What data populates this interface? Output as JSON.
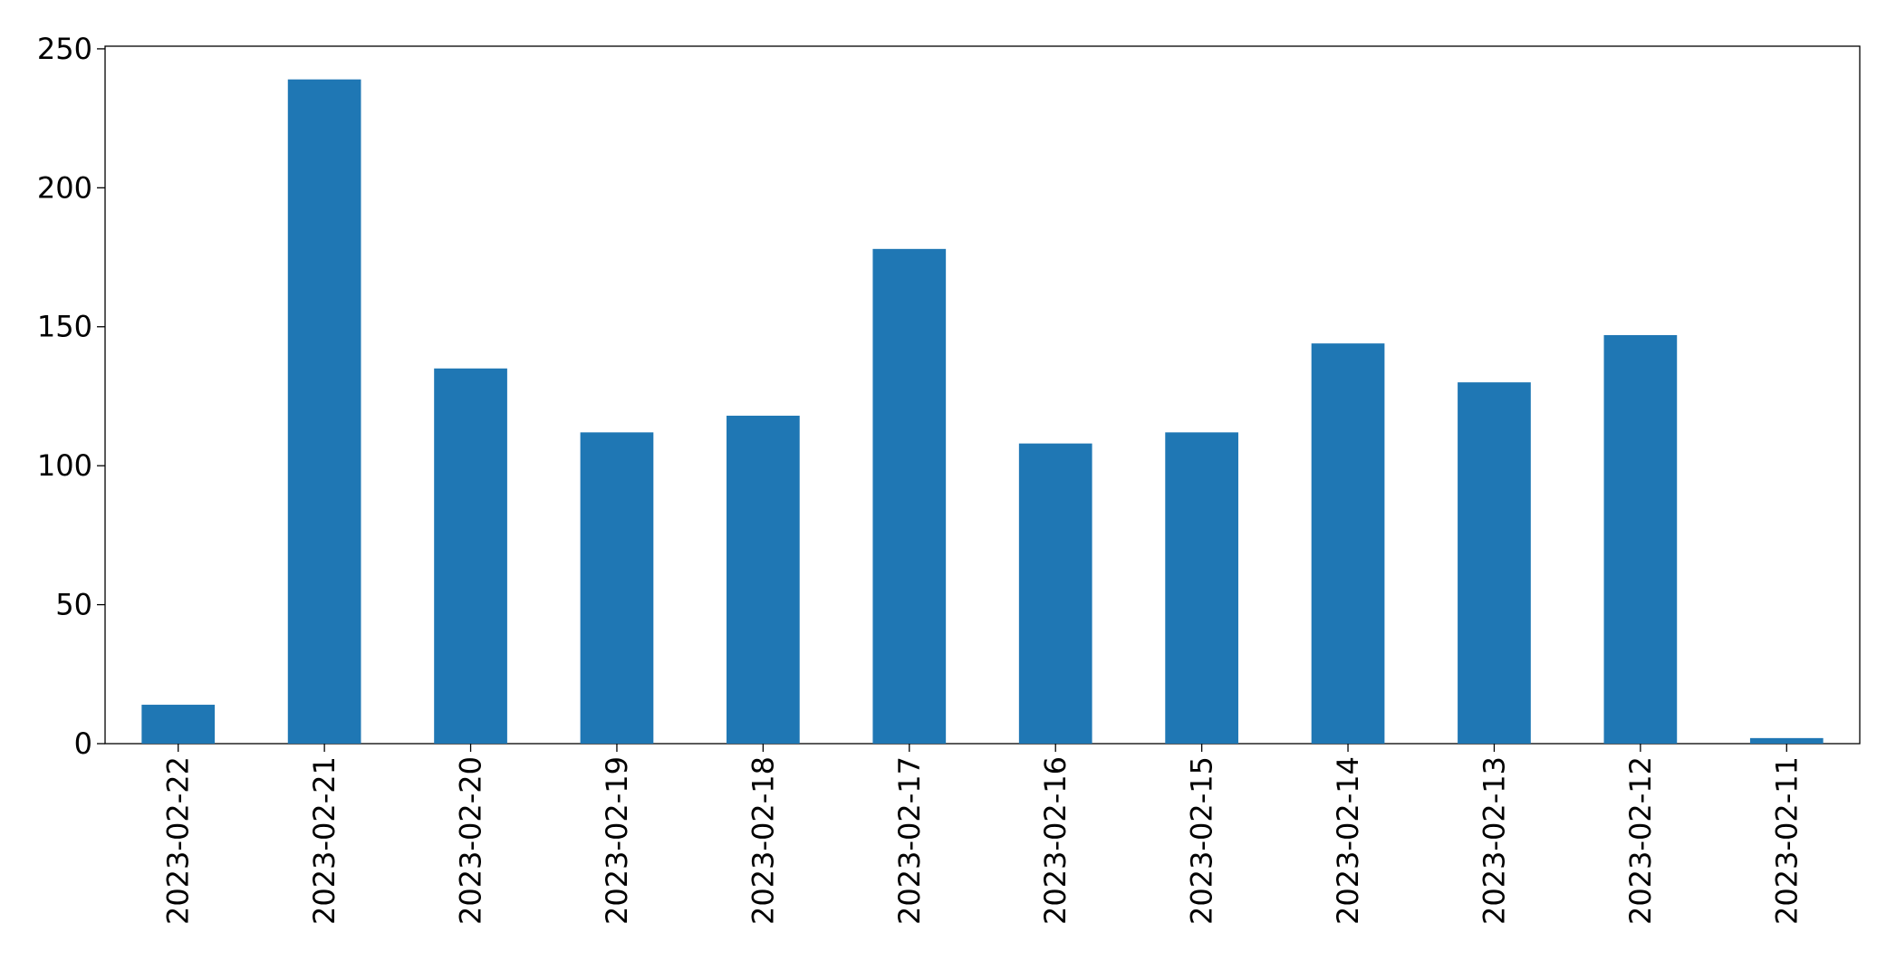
{
  "chart_data": {
    "type": "bar",
    "categories": [
      "2023-02-22",
      "2023-02-21",
      "2023-02-20",
      "2023-02-19",
      "2023-02-18",
      "2023-02-17",
      "2023-02-16",
      "2023-02-15",
      "2023-02-14",
      "2023-02-13",
      "2023-02-12",
      "2023-02-11"
    ],
    "values": [
      14,
      239,
      135,
      112,
      118,
      178,
      108,
      112,
      144,
      130,
      147,
      2
    ],
    "color": "#1f77b4",
    "ylim": [
      0,
      250.95
    ],
    "yticks": [
      0,
      50,
      100,
      150,
      200,
      250
    ],
    "grid": false
  }
}
